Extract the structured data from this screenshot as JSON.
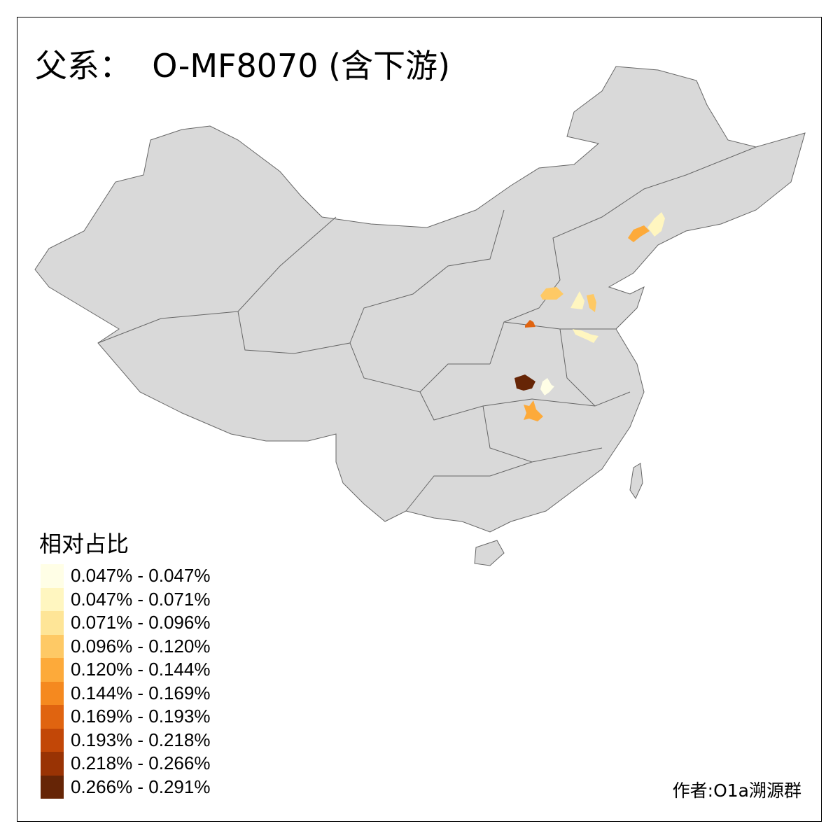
{
  "title": "父系：  O-MF8070 (含下游)",
  "legend": {
    "title": "相对占比",
    "bins": [
      {
        "label": "0.047% - 0.047%",
        "color": "#fffee6"
      },
      {
        "label": "0.047% - 0.071%",
        "color": "#fff6c0"
      },
      {
        "label": "0.071% - 0.096%",
        "color": "#fee597"
      },
      {
        "label": "0.096% - 0.120%",
        "color": "#fec965"
      },
      {
        "label": "0.120% - 0.144%",
        "color": "#fdaa3a"
      },
      {
        "label": "0.144% - 0.169%",
        "color": "#f5891f"
      },
      {
        "label": "0.169% - 0.193%",
        "color": "#e06410"
      },
      {
        "label": "0.193% - 0.218%",
        "color": "#c24707"
      },
      {
        "label": "0.218% - 0.266%",
        "color": "#993304"
      },
      {
        "label": "0.266% - 0.291%",
        "color": "#662506"
      }
    ]
  },
  "map": {
    "base_fill": "#d9d9d9",
    "border_color": "#666666",
    "highlighted_region_bins": [
      9,
      0,
      4,
      6,
      3,
      1,
      3,
      1,
      4,
      1
    ]
  },
  "credit": "作者:O1a溯源群"
}
